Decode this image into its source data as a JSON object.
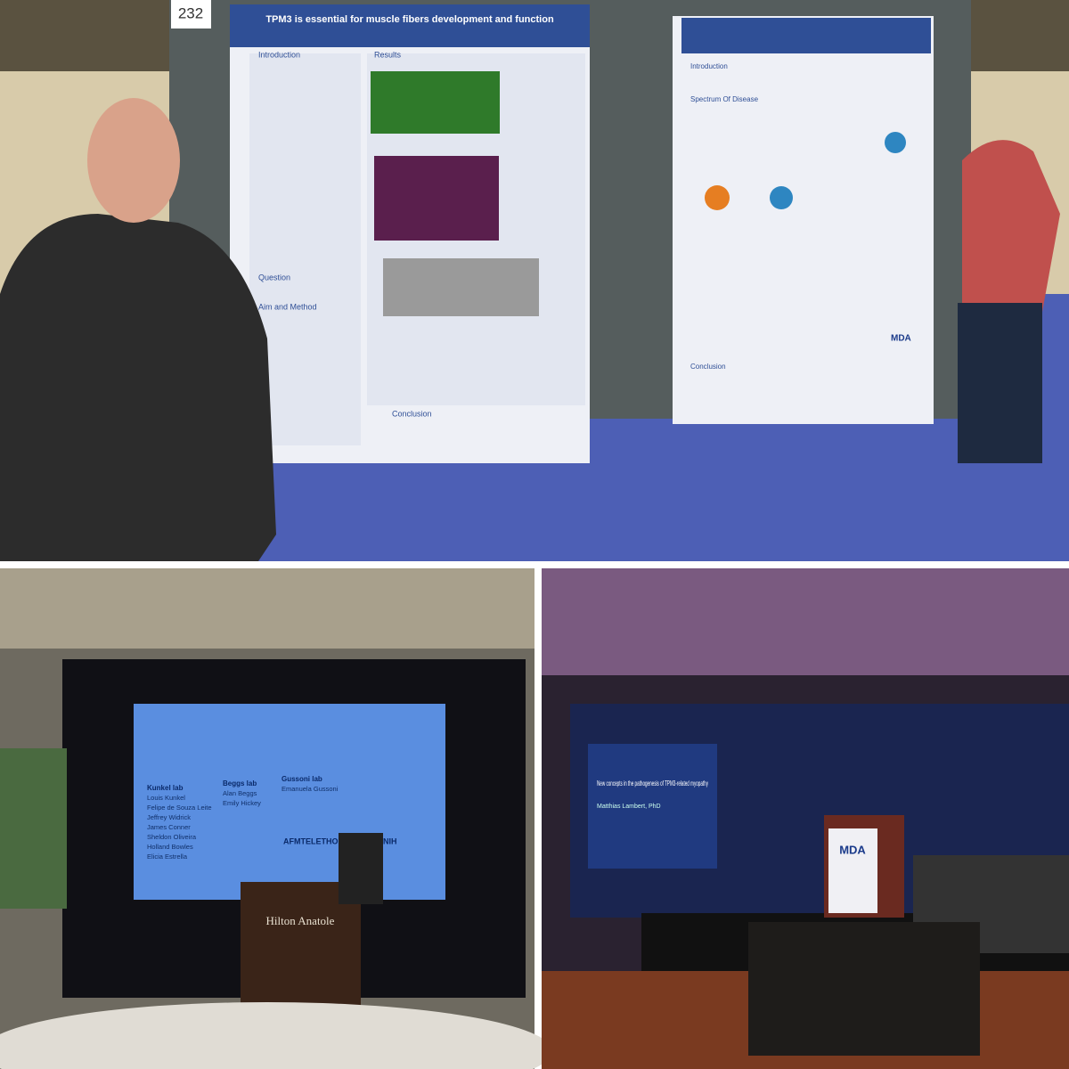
{
  "poster_hall": {
    "board_number": "232",
    "left_poster": {
      "title": "TPM3 is essential for muscle fibers development and function",
      "sections": [
        "Introduction",
        "Results",
        "Question",
        "Aim and Method",
        "Conclusion"
      ]
    },
    "right_poster": {
      "sections": [
        "Introduction",
        "Spectrum Of Disease",
        "Conclusion"
      ],
      "logo": "MDA"
    }
  },
  "talk_left": {
    "slide": {
      "labs": [
        {
          "name": "Kunkel lab",
          "members": [
            "Louis Kunkel",
            "Felipe de Souza Leite",
            "Jeffrey Widrick",
            "James Conner",
            "Sheldon Oliveira",
            "Holland Bowles",
            "Elicia Estrella"
          ]
        },
        {
          "name": "Beggs lab",
          "members": [
            "Alan Beggs",
            "Emily Hickey"
          ]
        },
        {
          "name": "Gussoni lab",
          "members": [
            "Emanuela Gussoni"
          ]
        }
      ],
      "sponsors": [
        "AFMTELETHON",
        "NIH"
      ]
    },
    "podium": "Hilton Anatole"
  },
  "talk_right": {
    "slide": {
      "title": "New concepts in the pathogenesis of TPM3-related myopathy",
      "speaker": "Matthias Lambert, PhD"
    },
    "podium": "MDA"
  }
}
